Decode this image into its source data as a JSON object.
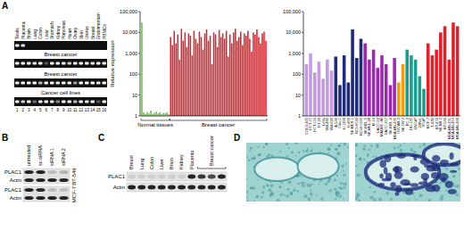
{
  "panel_labels": [
    "A",
    "B",
    "C",
    "D"
  ],
  "gels": {
    "tissues": [
      "Testis",
      "Placenta",
      "Brain",
      "Lung",
      "Colon",
      "Liver",
      "Stomach",
      "Kidney",
      "Pancreas",
      "Heart",
      "Ovary",
      "Skin",
      "Uterus",
      "Breast",
      "Endometrium",
      "PBMCs"
    ],
    "rows": [
      {
        "bands": [
          1,
          0.9,
          0,
          0,
          0,
          0,
          0,
          0,
          0,
          0,
          0,
          0,
          0,
          0,
          0,
          0
        ]
      },
      {
        "label": "Breast cancer",
        "bands": [
          1,
          1,
          1,
          0.9,
          1,
          0.3,
          1,
          1,
          1,
          0.8,
          1,
          1,
          1,
          0.9,
          1,
          1
        ]
      },
      {
        "label": "Breast cancer",
        "bands": [
          0.9,
          1,
          1,
          1,
          0.7,
          1,
          1,
          0.9,
          1,
          1,
          0.6,
          1,
          1,
          1,
          0.9,
          1
        ]
      },
      {
        "label": "Cancer cell lines",
        "bands": [
          1,
          0.8,
          1,
          0.4,
          1,
          1,
          0.9,
          0.5,
          1,
          1,
          0.7,
          1,
          0.9,
          1,
          0.3,
          1
        ]
      }
    ],
    "lane_numbers": [
      1,
      2,
      3,
      4,
      5,
      6,
      7,
      8,
      9,
      10,
      11,
      12,
      13,
      14,
      15,
      16
    ]
  },
  "chart_data": [
    {
      "type": "bar",
      "y_label": "Relative expression",
      "log": "y",
      "ylim": [
        1,
        100000
      ],
      "yticks": [
        1,
        10,
        100,
        {
          "value": 1000,
          "label": "1,000"
        },
        {
          "value": 10000,
          "label": "10,000"
        },
        {
          "value": 100000,
          "label": "100,000"
        }
      ],
      "categories": [
        null,
        null,
        null,
        null,
        null,
        null,
        null,
        null,
        null,
        null,
        null,
        null,
        null,
        null,
        null,
        null,
        null,
        null,
        null,
        null,
        null,
        null,
        null,
        null,
        null,
        null,
        null,
        null,
        null,
        null,
        null,
        null,
        null,
        null,
        null,
        null,
        null,
        null,
        null,
        null,
        null,
        null,
        null,
        null,
        null,
        null,
        null,
        null,
        null,
        null,
        null,
        null,
        null,
        null,
        null,
        null,
        null,
        null,
        null,
        null,
        null,
        null,
        null,
        null,
        null,
        null,
        null,
        null,
        null,
        null
      ],
      "series": [
        {
          "name": "Normal tissues",
          "color": "#6cc04a",
          "values": [
            30000,
            1.5,
            1.2,
            1.5,
            1.3,
            1.8,
            1.2,
            1.4,
            1.6,
            1.3,
            1.5,
            1.2,
            1.4,
            1.3,
            1.5,
            1.2,
            null,
            null,
            null,
            null,
            null,
            null,
            null,
            null,
            null,
            null,
            null,
            null,
            null,
            null,
            null,
            null,
            null,
            null,
            null,
            null,
            null,
            null,
            null,
            null,
            null,
            null,
            null,
            null,
            null,
            null,
            null,
            null,
            null,
            null,
            null,
            null,
            null,
            null,
            null,
            null,
            null,
            null,
            null,
            null,
            null,
            null,
            null,
            null,
            null,
            null,
            null,
            null,
            null,
            null
          ]
        },
        {
          "name": "Breast cancer",
          "color": "#e0202a",
          "values": [
            null,
            null,
            null,
            null,
            null,
            null,
            null,
            null,
            null,
            null,
            null,
            null,
            null,
            null,
            null,
            null,
            6000,
            2500,
            12000,
            3000,
            8000,
            500,
            15000,
            4000,
            10000,
            2000,
            9000,
            7000,
            800,
            12000,
            5000,
            3000,
            11000,
            6000,
            1500,
            9000,
            14000,
            4000,
            7000,
            300,
            10000,
            8000,
            2000,
            13000,
            6000,
            9000,
            5000,
            12000,
            700,
            8000,
            3000,
            10000,
            15000,
            4000,
            6000,
            11000,
            2500,
            9000,
            7000,
            12000,
            5000,
            1200,
            10000,
            8000,
            14000,
            6000,
            3000,
            9000,
            11000,
            4000
          ]
        }
      ]
    },
    {
      "type": "bar",
      "log": "y",
      "ylim": [
        1,
        100000
      ],
      "yticks": [
        1,
        10,
        100,
        {
          "value": 1000,
          "label": "1,000"
        },
        {
          "value": 10000,
          "label": "10,000"
        },
        {
          "value": 100000,
          "label": "100,000"
        }
      ],
      "categories": [
        "COLO-205",
        "HCT-15",
        "HCT-116",
        "HT-29",
        "LoVo",
        "SW-480",
        "SW-620",
        "A-549",
        "Calu-1",
        "H-1299",
        "H-460",
        "SK-MES-1",
        "NCI-H522",
        "NCI-H1395",
        "SK-MEL-5",
        "SK-MEL-28",
        "M-14",
        "UACC-62",
        "MALME-3M",
        "UACC-257",
        "SK-MEL-2",
        "MDA-MB-435",
        "OVCAR-3",
        "SK-OV-3",
        "PC-3",
        "DU-145",
        "LNCaP",
        "22Rv1",
        "VCaP",
        "MCF-7",
        "T-47D",
        "BT-474",
        "SK-BR-3",
        "BT-549",
        "MDA-MB-231",
        "MDA-MB-453",
        "MDA-MB-468"
      ],
      "values": [
        300,
        1000,
        120,
        400,
        60,
        500,
        150,
        700,
        30,
        800,
        40,
        14000,
        600,
        5000,
        3000,
        500,
        1500,
        200,
        800,
        300,
        30,
        600,
        40,
        300,
        1500,
        800,
        500,
        80,
        20,
        3000,
        800,
        1500,
        10000,
        20000,
        500,
        30000,
        20000
      ],
      "colors": [
        "#c39be0",
        "#c39be0",
        "#c39be0",
        "#c39be0",
        "#c39be0",
        "#c39be0",
        "#c39be0",
        "#1f2a7a",
        "#1f2a7a",
        "#1f2a7a",
        "#1f2a7a",
        "#1f2a7a",
        "#1f2a7a",
        "#1f2a7a",
        "#9c27b0",
        "#9c27b0",
        "#9c27b0",
        "#9c27b0",
        "#9c27b0",
        "#9c27b0",
        "#9c27b0",
        "#9c27b0",
        "#f39c12",
        "#f39c12",
        "#1a9e8f",
        "#1a9e8f",
        "#1a9e8f",
        "#1a9e8f",
        "#1a9e8f",
        "#e0202a",
        "#e0202a",
        "#e0202a",
        "#e0202a",
        "#e0202a",
        "#e0202a",
        "#e0202a",
        "#e0202a"
      ]
    }
  ],
  "western_b": {
    "lanes": [
      "untreated",
      "sc-siRNA",
      "siRNA 1",
      "siRNA 2"
    ],
    "blots": [
      {
        "cell_line": "BT-549",
        "rows": [
          {
            "label": "PLAC1",
            "bands": [
              1,
              1,
              0.2,
              0.25
            ]
          },
          {
            "label": "Actin",
            "bands": [
              1,
              1,
              1,
              1
            ]
          }
        ]
      },
      {
        "cell_line": "MCF-7",
        "rows": [
          {
            "label": "PLAC1",
            "bands": [
              1,
              0.95,
              0.2,
              0.2
            ]
          },
          {
            "label": "Actin",
            "bands": [
              1,
              1,
              1,
              1
            ]
          }
        ]
      }
    ]
  },
  "western_c": {
    "lanes": [
      "Breast",
      "Lung",
      "Colon",
      "Liver",
      "Brain",
      "Kidney",
      "Placenta"
    ],
    "group": {
      "label": "Breast cancer",
      "lanes": 3
    },
    "rows": [
      {
        "label": "PLAC1",
        "bands": [
          0.1,
          0.1,
          0.1,
          0.1,
          0.1,
          0.1,
          1,
          0.9,
          0.8,
          1
        ]
      },
      {
        "label": "Actin",
        "bands": [
          1,
          1,
          1,
          1,
          1,
          1,
          1,
          1,
          1,
          1
        ]
      }
    ]
  }
}
